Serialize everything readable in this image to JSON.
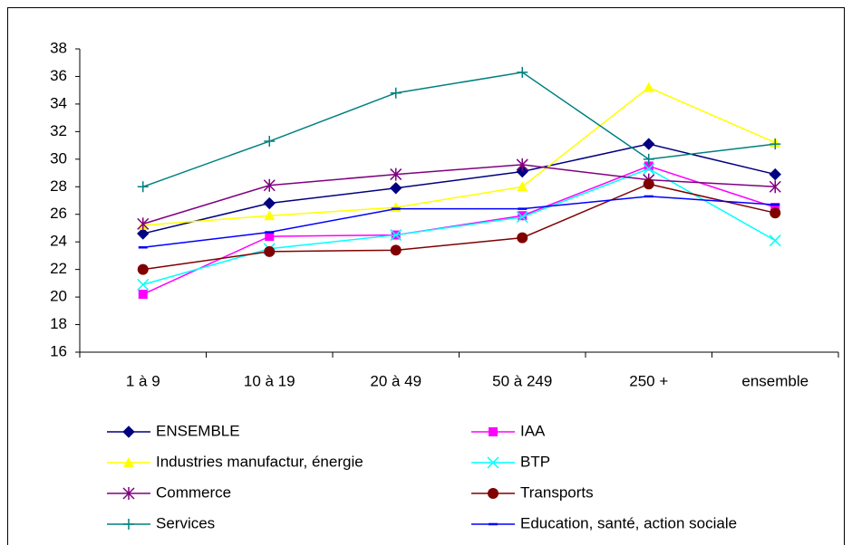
{
  "chart_data": {
    "type": "line",
    "categories": [
      "1 à 9",
      "10 à 19",
      "20 à 49",
      "50 à 249",
      "250 +",
      "ensemble"
    ],
    "ylim": [
      16,
      38
    ],
    "yticks": [
      16,
      18,
      20,
      22,
      24,
      26,
      28,
      30,
      32,
      34,
      36,
      38
    ],
    "series": [
      {
        "name": "ENSEMBLE",
        "color": "#000080",
        "marker": "diamond",
        "values": [
          24.6,
          26.8,
          27.9,
          29.1,
          31.1,
          28.9
        ]
      },
      {
        "name": "IAA",
        "color": "#ff00ff",
        "marker": "square",
        "values": [
          20.2,
          24.4,
          24.5,
          25.9,
          29.5,
          26.5
        ]
      },
      {
        "name": "Industries manufactur, énergie",
        "color": "#ffff00",
        "marker": "triangle",
        "values": [
          25.2,
          25.9,
          26.5,
          28.0,
          35.2,
          31.2
        ]
      },
      {
        "name": "BTP",
        "color": "#00ffff",
        "marker": "x",
        "values": [
          20.9,
          23.5,
          24.5,
          25.8,
          29.3,
          24.1
        ]
      },
      {
        "name": "Commerce",
        "color": "#800080",
        "marker": "star",
        "values": [
          25.3,
          28.1,
          28.9,
          29.6,
          28.5,
          28.0
        ]
      },
      {
        "name": "Transports",
        "color": "#800000",
        "marker": "circle",
        "values": [
          22.0,
          23.3,
          23.4,
          24.3,
          28.2,
          26.1
        ]
      },
      {
        "name": "Services",
        "color": "#008080",
        "marker": "plus",
        "values": [
          28.0,
          31.3,
          34.8,
          36.3,
          30.0,
          31.1
        ]
      },
      {
        "name": "Education, santé, action sociale",
        "color": "#0000ff",
        "marker": "dash",
        "values": [
          23.6,
          24.7,
          26.4,
          26.4,
          27.3,
          26.7
        ]
      }
    ]
  }
}
